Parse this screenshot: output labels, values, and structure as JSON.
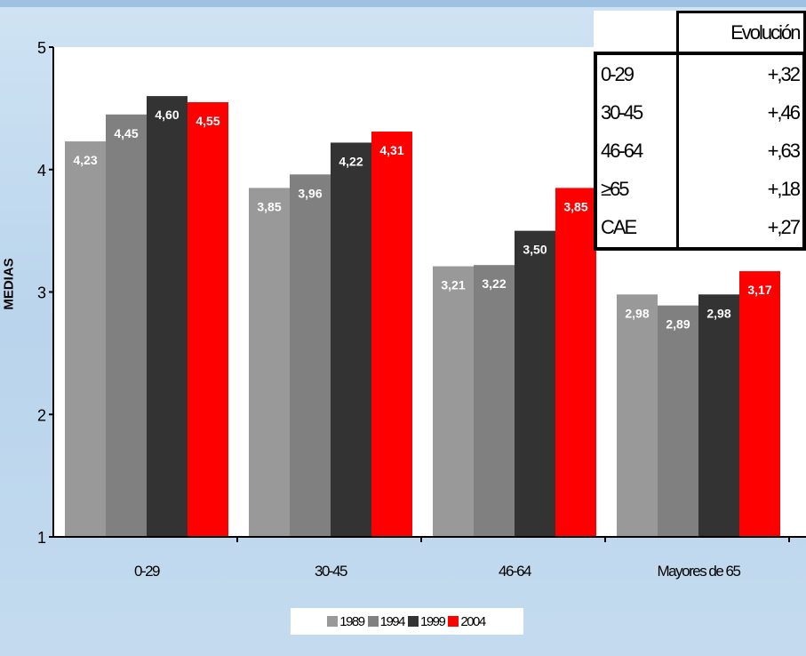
{
  "chart_data": {
    "type": "bar",
    "ylabel": "MEDIAS",
    "ylim": [
      1,
      5
    ],
    "yticks": [
      "1",
      "2",
      "3",
      "4",
      "5"
    ],
    "categories": [
      "0-29",
      "30-45",
      "46-64",
      "Mayores de 65"
    ],
    "series": [
      {
        "name": "1989",
        "color": "#999999",
        "values": [
          4.23,
          3.85,
          3.21,
          2.98
        ],
        "labels": [
          "4,23",
          "3,85",
          "3,21",
          "2,98"
        ]
      },
      {
        "name": "1994",
        "color": "#808080",
        "values": [
          4.45,
          3.96,
          3.22,
          2.89
        ],
        "labels": [
          "4,45",
          "3,96",
          "3,22",
          "2,89"
        ]
      },
      {
        "name": "1999",
        "color": "#333333",
        "values": [
          4.6,
          4.22,
          3.5,
          2.98
        ],
        "labels": [
          "4,60",
          "4,22",
          "3,50",
          "2,98"
        ]
      },
      {
        "name": "2004",
        "color": "#ff0000",
        "values": [
          4.55,
          4.31,
          3.85,
          3.17
        ],
        "labels": [
          "4,55",
          "4,31",
          "3,85",
          "3,17"
        ]
      }
    ],
    "legend": "bottom-center",
    "grid": false
  },
  "evolution_table": {
    "header": "Evolución",
    "rows": [
      {
        "category": "0-29",
        "value": "+,32"
      },
      {
        "category": "30-45",
        "value": "+,46"
      },
      {
        "category": "46-64",
        "value": "+,63"
      },
      {
        "category": "≥65",
        "value": "+,18"
      },
      {
        "category": "CAE",
        "value": "+,27"
      }
    ]
  }
}
